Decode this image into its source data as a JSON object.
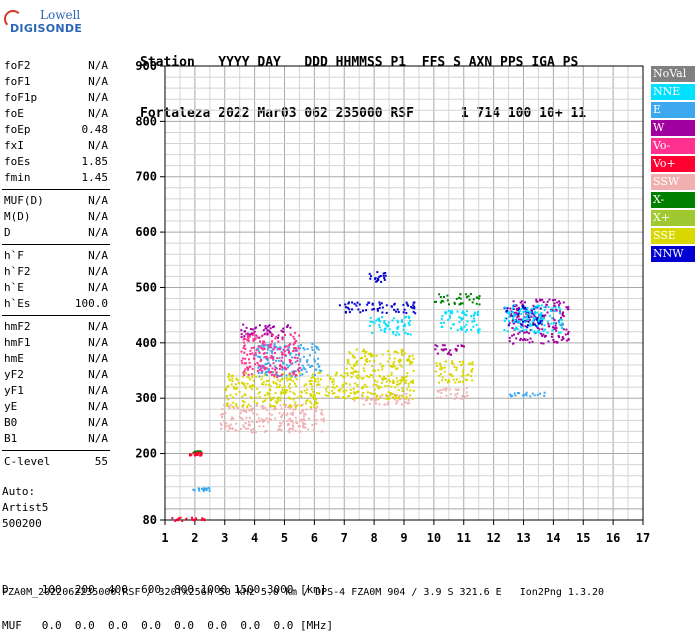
{
  "logo": {
    "line1": "Lowell",
    "line2": "DIGISONDE"
  },
  "header": {
    "line1": "Station   YYYY DAY   DDD HHMMSS P1  FFS S AXN PPS IGA PS",
    "line2": "Fortaleza 2022 Mar03 062 235000 RSF      1 714 100 10+ 11"
  },
  "params_groups": [
    [
      {
        "k": "foF2",
        "v": "N/A"
      },
      {
        "k": "foF1",
        "v": "N/A"
      },
      {
        "k": "foF1p",
        "v": "N/A"
      },
      {
        "k": "foE",
        "v": "N/A"
      },
      {
        "k": "foEp",
        "v": "0.48"
      },
      {
        "k": "fxI",
        "v": "N/A"
      },
      {
        "k": "foEs",
        "v": "1.85"
      },
      {
        "k": "fmin",
        "v": "1.45"
      }
    ],
    [
      {
        "k": "MUF(D)",
        "v": "N/A"
      },
      {
        "k": "M(D)",
        "v": "N/A"
      },
      {
        "k": "D",
        "v": "N/A"
      }
    ],
    [
      {
        "k": "h`F",
        "v": "N/A"
      },
      {
        "k": "h`F2",
        "v": "N/A"
      },
      {
        "k": "h`E",
        "v": "N/A"
      },
      {
        "k": "h`Es",
        "v": "100.0"
      }
    ],
    [
      {
        "k": "hmF2",
        "v": "N/A"
      },
      {
        "k": "hmF1",
        "v": "N/A"
      },
      {
        "k": "hmE",
        "v": "N/A"
      },
      {
        "k": "yF2",
        "v": "N/A"
      },
      {
        "k": "yF1",
        "v": "N/A"
      },
      {
        "k": "yE",
        "v": "N/A"
      },
      {
        "k": "B0",
        "v": "N/A"
      },
      {
        "k": "B1",
        "v": "N/A"
      }
    ],
    [
      {
        "k": "C-level",
        "v": "55"
      }
    ]
  ],
  "auto": {
    "line1": "Auto:",
    "line2": "Artist5",
    "line3": "500200"
  },
  "legend": [
    {
      "label": "NoVal",
      "color": "#808080"
    },
    {
      "label": "NNE",
      "color": "#00e0ff"
    },
    {
      "label": "E",
      "color": "#3ba8f0"
    },
    {
      "label": "W",
      "color": "#a000a0"
    },
    {
      "label": "Vo-",
      "color": "#ff3090"
    },
    {
      "label": "Vo+",
      "color": "#ff0030"
    },
    {
      "label": "SSW",
      "color": "#f0b0b0"
    },
    {
      "label": "X-",
      "color": "#008000"
    },
    {
      "label": "X+",
      "color": "#a0c830"
    },
    {
      "label": "SSE",
      "color": "#d8d800"
    },
    {
      "label": "NNW",
      "color": "#0000d0"
    }
  ],
  "footer": {
    "line1": "D     100  200  400  600  800 1000 1500 3000 [km]",
    "line2": "MUF   0.0  0.0  0.0  0.0  0.0  0.0  0.0  0.0 [MHz]",
    "line3": "FZA0M_2022062235000.RSF / 320fx256h 50 kHz 5.0 km / DPS-4 FZA0M 904 / 3.9 S 321.6 E   Ion2Png 1.3.20"
  },
  "chart_data": {
    "type": "scatter",
    "xlim": [
      1,
      17
    ],
    "ylim": [
      80,
      900
    ],
    "x_ticks": [
      1,
      2,
      3,
      4,
      5,
      6,
      7,
      8,
      9,
      10,
      11,
      12,
      13,
      14,
      15,
      16,
      17
    ],
    "y_ticks": [
      80,
      200,
      300,
      400,
      500,
      600,
      700,
      800,
      900
    ],
    "grid": true,
    "legend_placement": "right",
    "clusters": [
      {
        "x": [
          2.8,
          6.3
        ],
        "y": [
          240,
          290
        ],
        "color": "#f0b0b0"
      },
      {
        "x": [
          7.3,
          9.2
        ],
        "y": [
          290,
          310
        ],
        "color": "#f0b0b0"
      },
      {
        "x": [
          10.0,
          11.2
        ],
        "y": [
          300,
          320
        ],
        "color": "#f0b0b0"
      },
      {
        "x": [
          3.0,
          6.2
        ],
        "y": [
          285,
          350
        ],
        "color": "#d8d800"
      },
      {
        "x": [
          6.3,
          7.0
        ],
        "y": [
          300,
          350
        ],
        "color": "#d8d800"
      },
      {
        "x": [
          7.0,
          9.3
        ],
        "y": [
          300,
          390
        ],
        "color": "#d8d800"
      },
      {
        "x": [
          10.0,
          11.3
        ],
        "y": [
          330,
          370
        ],
        "color": "#d8d800"
      },
      {
        "x": [
          3.5,
          5.2
        ],
        "y": [
          410,
          435
        ],
        "color": "#a000a0"
      },
      {
        "x": [
          10.0,
          11.0
        ],
        "y": [
          380,
          400
        ],
        "color": "#a000a0"
      },
      {
        "x": [
          12.5,
          14.5
        ],
        "y": [
          400,
          480
        ],
        "color": "#a000a0"
      },
      {
        "x": [
          6.8,
          9.4
        ],
        "y": [
          455,
          475
        ],
        "color": "#0000d0"
      },
      {
        "x": [
          12.3,
          13.6
        ],
        "y": [
          430,
          470
        ],
        "color": "#0000d0"
      },
      {
        "x": [
          7.8,
          8.4
        ],
        "y": [
          510,
          530
        ],
        "color": "#0000d0"
      },
      {
        "x": [
          7.8,
          9.2
        ],
        "y": [
          415,
          450
        ],
        "color": "#00e0ff"
      },
      {
        "x": [
          10.2,
          11.5
        ],
        "y": [
          420,
          460
        ],
        "color": "#00e0ff"
      },
      {
        "x": [
          12.3,
          14.3
        ],
        "y": [
          420,
          470
        ],
        "color": "#00e0ff"
      },
      {
        "x": [
          4.0,
          6.2
        ],
        "y": [
          340,
          400
        ],
        "color": "#3ba8f0"
      },
      {
        "x": [
          12.4,
          13.8
        ],
        "y": [
          305,
          312
        ],
        "color": "#3ba8f0"
      },
      {
        "x": [
          10.0,
          11.5
        ],
        "y": [
          470,
          490
        ],
        "color": "#008000"
      },
      {
        "x": [
          1.9,
          2.2
        ],
        "y": [
          200,
          206
        ],
        "color": "#008000"
      },
      {
        "x": [
          3.5,
          5.5
        ],
        "y": [
          340,
          420
        ],
        "color": "#ff3090"
      },
      {
        "x": [
          1.2,
          2.3
        ],
        "y": [
          80,
          86
        ],
        "color": "#ff0030"
      },
      {
        "x": [
          1.8,
          2.2
        ],
        "y": [
          198,
          204
        ],
        "color": "#ff0030"
      },
      {
        "x": [
          1.9,
          2.5
        ],
        "y": [
          134,
          140
        ],
        "color": "#3ba8f0"
      }
    ]
  }
}
